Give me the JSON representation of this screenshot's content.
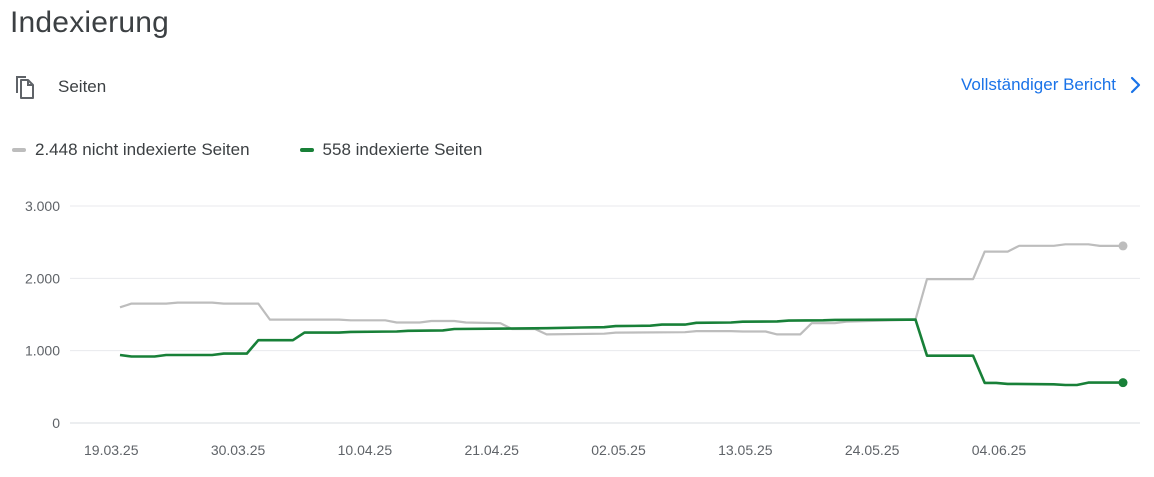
{
  "header": {
    "title": "Indexierung",
    "section_label": "Seiten",
    "section_icon": "pages-icon",
    "report_link": "Vollständiger Bericht",
    "report_icon": "chevron-right-icon"
  },
  "legend": {
    "not_indexed": "2.448 nicht indexierte Seiten",
    "indexed": "558 indexierte Seiten"
  },
  "colors": {
    "not_indexed": "#bdbdbd",
    "indexed": "#188038",
    "grid": "#e8eaed",
    "axis_text": "#5f6368",
    "link": "#1a73e8"
  },
  "chart_data": {
    "type": "line",
    "x_ticks": [
      "19.03.25",
      "30.03.25",
      "10.04.25",
      "21.04.25",
      "02.05.25",
      "13.05.25",
      "24.05.25",
      "04.06.25"
    ],
    "y_ticks": [
      "0",
      "1.000",
      "2.000",
      "3.000"
    ],
    "ylim": [
      0,
      3000
    ],
    "grid": true,
    "legend_position": "top-left",
    "x_start": "2025-03-19",
    "x_end": "2025-06-14",
    "series": [
      {
        "name": "2.448 nicht indexierte Seiten",
        "key": "not_indexed",
        "points": [
          [
            "2025-03-19",
            1600
          ],
          [
            "2025-03-20",
            1650
          ],
          [
            "2025-03-23",
            1650
          ],
          [
            "2025-03-24",
            1665
          ],
          [
            "2025-03-27",
            1665
          ],
          [
            "2025-03-28",
            1650
          ],
          [
            "2025-03-31",
            1650
          ],
          [
            "2025-04-01",
            1430
          ],
          [
            "2025-04-07",
            1430
          ],
          [
            "2025-04-08",
            1420
          ],
          [
            "2025-04-11",
            1420
          ],
          [
            "2025-04-12",
            1390
          ],
          [
            "2025-04-14",
            1390
          ],
          [
            "2025-04-15",
            1410
          ],
          [
            "2025-04-17",
            1410
          ],
          [
            "2025-04-18",
            1390
          ],
          [
            "2025-04-21",
            1380
          ],
          [
            "2025-04-22",
            1300
          ],
          [
            "2025-04-24",
            1300
          ],
          [
            "2025-04-25",
            1225
          ],
          [
            "2025-04-30",
            1235
          ],
          [
            "2025-05-01",
            1250
          ],
          [
            "2025-05-07",
            1255
          ],
          [
            "2025-05-08",
            1270
          ],
          [
            "2025-05-11",
            1270
          ],
          [
            "2025-05-12",
            1265
          ],
          [
            "2025-05-14",
            1265
          ],
          [
            "2025-05-15",
            1225
          ],
          [
            "2025-05-17",
            1225
          ],
          [
            "2025-05-18",
            1380
          ],
          [
            "2025-05-20",
            1380
          ],
          [
            "2025-05-21",
            1400
          ],
          [
            "2025-05-27",
            1430
          ],
          [
            "2025-05-28",
            1990
          ],
          [
            "2025-06-01",
            1990
          ],
          [
            "2025-06-02",
            2370
          ],
          [
            "2025-06-04",
            2370
          ],
          [
            "2025-06-05",
            2450
          ],
          [
            "2025-06-08",
            2450
          ],
          [
            "2025-06-09",
            2470
          ],
          [
            "2025-06-11",
            2470
          ],
          [
            "2025-06-12",
            2448
          ],
          [
            "2025-06-14",
            2448
          ]
        ]
      },
      {
        "name": "558 indexierte Seiten",
        "key": "indexed",
        "points": [
          [
            "2025-03-19",
            940
          ],
          [
            "2025-03-20",
            920
          ],
          [
            "2025-03-22",
            920
          ],
          [
            "2025-03-23",
            940
          ],
          [
            "2025-03-27",
            940
          ],
          [
            "2025-03-28",
            960
          ],
          [
            "2025-03-30",
            960
          ],
          [
            "2025-03-31",
            1145
          ],
          [
            "2025-04-03",
            1145
          ],
          [
            "2025-04-04",
            1250
          ],
          [
            "2025-04-07",
            1250
          ],
          [
            "2025-04-08",
            1260
          ],
          [
            "2025-04-12",
            1265
          ],
          [
            "2025-04-13",
            1275
          ],
          [
            "2025-04-16",
            1280
          ],
          [
            "2025-04-17",
            1300
          ],
          [
            "2025-04-25",
            1310
          ],
          [
            "2025-04-28",
            1320
          ],
          [
            "2025-04-30",
            1325
          ],
          [
            "2025-05-01",
            1340
          ],
          [
            "2025-05-04",
            1345
          ],
          [
            "2025-05-05",
            1360
          ],
          [
            "2025-05-07",
            1360
          ],
          [
            "2025-05-08",
            1385
          ],
          [
            "2025-05-11",
            1390
          ],
          [
            "2025-05-12",
            1400
          ],
          [
            "2025-05-15",
            1405
          ],
          [
            "2025-05-16",
            1415
          ],
          [
            "2025-05-19",
            1420
          ],
          [
            "2025-05-20",
            1425
          ],
          [
            "2025-05-27",
            1430
          ],
          [
            "2025-05-28",
            930
          ],
          [
            "2025-06-01",
            930
          ],
          [
            "2025-06-02",
            555
          ],
          [
            "2025-06-03",
            555
          ],
          [
            "2025-06-04",
            540
          ],
          [
            "2025-06-08",
            535
          ],
          [
            "2025-06-09",
            525
          ],
          [
            "2025-06-10",
            525
          ],
          [
            "2025-06-11",
            558
          ],
          [
            "2025-06-14",
            558
          ]
        ]
      }
    ]
  }
}
